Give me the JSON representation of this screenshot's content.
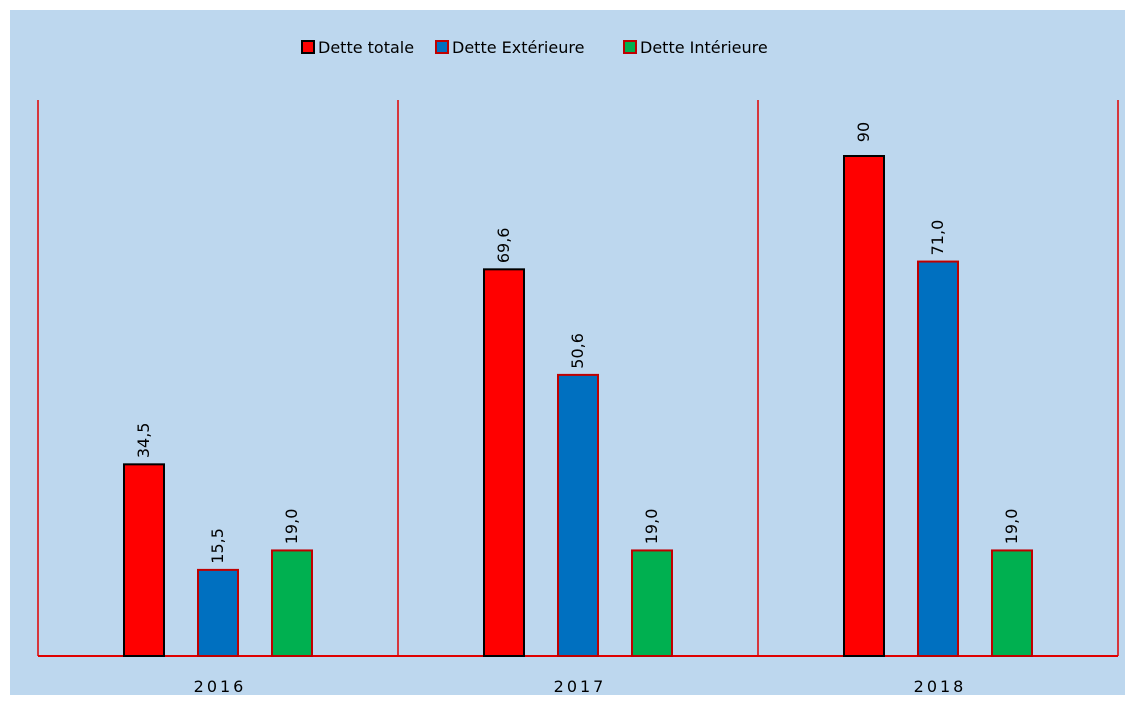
{
  "chart_data": {
    "type": "bar",
    "categories": [
      "2016",
      "2017",
      "2018"
    ],
    "series": [
      {
        "name": "Dette totale",
        "color": "#ff0000",
        "edgecolor": "#000000",
        "values": [
          34.5,
          69.6,
          90
        ],
        "value_labels": [
          "34,5",
          "69,6",
          "90"
        ]
      },
      {
        "name": "Dette Extérieure",
        "color": "#0070c0",
        "edgecolor": "#c00000",
        "values": [
          15.5,
          50.6,
          71.0
        ],
        "value_labels": [
          "15,5",
          "50,6",
          "71,0"
        ]
      },
      {
        "name": "Dette Intérieure",
        "color": "#00b050",
        "edgecolor": "#c00000",
        "values": [
          19.0,
          19.0,
          19.0
        ],
        "value_labels": [
          "19,0",
          "19,0",
          "19,0"
        ]
      }
    ],
    "legend": "top",
    "axis_color": "#e00000",
    "background": "#bdd7ee"
  }
}
